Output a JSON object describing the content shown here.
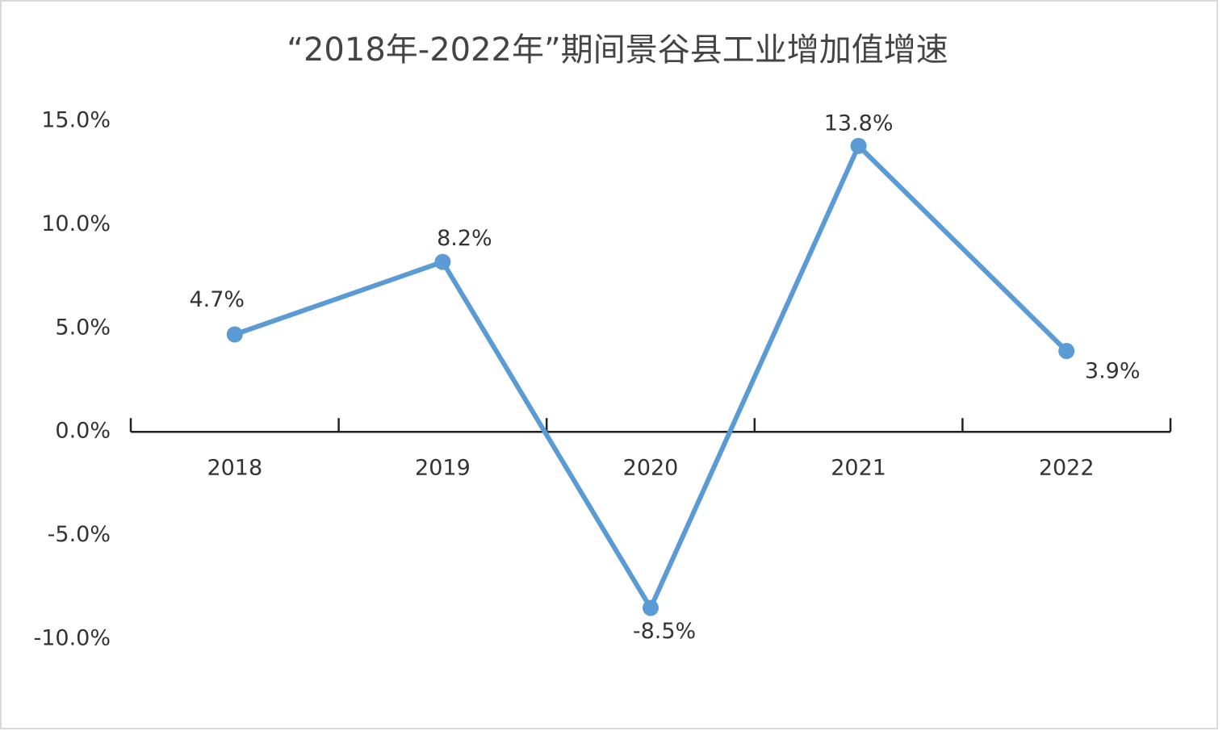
{
  "chart_data": {
    "type": "line",
    "title": "“2018年-2022年”期间景谷县工业增加值增速",
    "categories": [
      "2018",
      "2019",
      "2020",
      "2021",
      "2022"
    ],
    "values": [
      4.7,
      8.2,
      -8.5,
      13.8,
      3.9
    ],
    "value_labels": [
      "4.7%",
      "8.2%",
      "-8.5%",
      "13.8%",
      "3.9%"
    ],
    "color": "#5b9bd5",
    "ylim": [
      -10,
      15
    ],
    "yticks": [
      {
        "value": -10,
        "label": "-10.0%"
      },
      {
        "value": -5,
        "label": "-5.0%"
      },
      {
        "value": 0,
        "label": "0.0%"
      },
      {
        "value": 5,
        "label": "5.0%"
      },
      {
        "value": 10,
        "label": "10.0%"
      },
      {
        "value": 15,
        "label": "15.0%"
      }
    ],
    "grid": false
  }
}
